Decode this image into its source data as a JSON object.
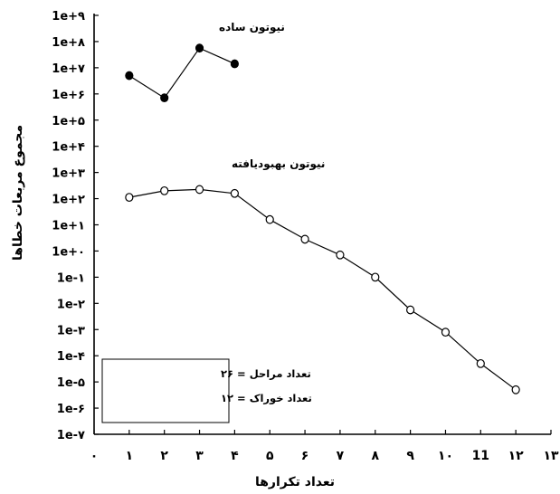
{
  "chart_data": {
    "type": "line",
    "xlabel": "تعداد تکرارها",
    "ylabel": "مجموع مربعات خطاها",
    "x_ticks": [
      "۰",
      "۱",
      "۲",
      "۳",
      "۴",
      "۵",
      "۶",
      "۷",
      "۸",
      "۹",
      "۱۰",
      "11",
      "۱۲",
      "۱۳"
    ],
    "y_ticks": [
      "1e-۷",
      "1e-۶",
      "1e-۵",
      "1e-۴",
      "1e-۳",
      "1e-۲",
      "1e-۱",
      "1e+۰",
      "1e+۱",
      "1e+۲",
      "1e+۳",
      "1e+۴",
      "1e+۵",
      "1e+۶",
      "1e+۷",
      "1e+۸",
      "1e+۹"
    ],
    "y_scale": "log",
    "y_log_range": [
      -7,
      9
    ],
    "x_range": [
      0,
      13
    ],
    "series": [
      {
        "name": "نیوتون ساده",
        "marker": "filled-circle",
        "x": [
          1,
          2,
          3,
          4
        ],
        "y_log10": [
          6.7,
          5.85,
          7.75,
          7.15
        ]
      },
      {
        "name": "نیوتون بهبودیافته",
        "marker": "open-circle",
        "x": [
          1,
          2,
          3,
          4,
          5,
          6,
          7,
          8,
          9,
          10,
          11,
          12
        ],
        "y_log10": [
          2.05,
          2.3,
          2.35,
          2.2,
          1.2,
          0.45,
          -0.15,
          -1.0,
          -2.25,
          -3.1,
          -4.3,
          -5.3
        ]
      }
    ],
    "annotation_lines": [
      "تعداد مراحل = ۲۶",
      "تعداد خوراک = ۱۲"
    ],
    "grid": false
  }
}
